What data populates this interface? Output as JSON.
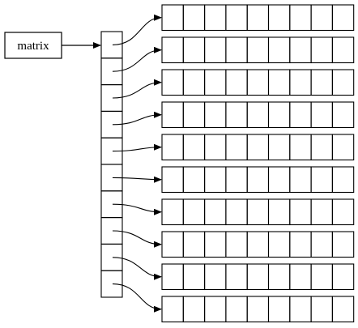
{
  "diagram": {
    "label": "matrix",
    "pointer_cell_count": 10,
    "row_count": 10,
    "cells_per_row": 9,
    "stroke_color": "#000000",
    "background_color": "#ffffff"
  }
}
